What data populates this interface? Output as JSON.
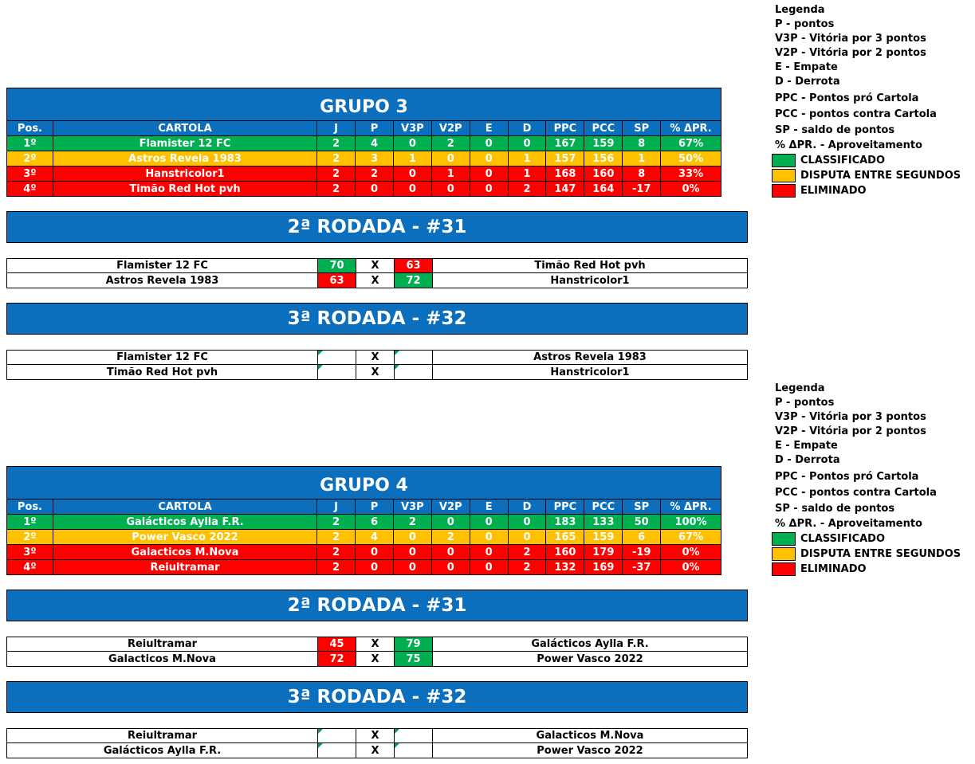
{
  "colors": {
    "header_blue": "#0b6fbd",
    "classificado": "#00b050",
    "disputa": "#ffc000",
    "eliminado": "#ff0000"
  },
  "legend": {
    "title": "Legenda",
    "lines": [
      "P - pontos",
      "V3P - Vitória por 3 pontos",
      "V2P - Vitória por 2 pontos",
      "E - Empate",
      "D - Derrota",
      "PPC - Pontos pró Cartola",
      "PCC - pontos contra Cartola",
      "SP - saldo de pontos",
      "% ΔPR. - Aproveitamento"
    ],
    "status": [
      "CLASSIFICADO",
      "DISPUTA ENTRE SEGUNDOS",
      "ELIMINADO"
    ]
  },
  "columns": [
    "Pos.",
    "CARTOLA",
    "J",
    "P",
    "V3P",
    "V2P",
    "E",
    "D",
    "PPC",
    "PCC",
    "SP",
    "% ΔPR."
  ],
  "groups": [
    {
      "title": "GRUPO 3",
      "rows": [
        [
          "1º",
          "Flamister 12 FC",
          "2",
          "4",
          "0",
          "2",
          "0",
          "0",
          "167",
          "159",
          "8",
          "67%"
        ],
        [
          "2º",
          "Astros Revela 1983",
          "2",
          "3",
          "1",
          "0",
          "0",
          "1",
          "157",
          "156",
          "1",
          "50%"
        ],
        [
          "3º",
          "Hanstricolor1",
          "2",
          "2",
          "0",
          "1",
          "0",
          "1",
          "168",
          "160",
          "8",
          "33%"
        ],
        [
          "4º",
          "Timão Red Hot pvh",
          "2",
          "0",
          "0",
          "0",
          "0",
          "2",
          "147",
          "164",
          "-17",
          "0%"
        ]
      ],
      "round2": {
        "title": "2ª RODADA - #31",
        "matches": [
          {
            "home": "Flamister 12 FC",
            "home_score": "70",
            "x": "X",
            "away_score": "63",
            "away": "Timão Red Hot pvh"
          },
          {
            "home": "Astros Revela 1983",
            "home_score": "63",
            "x": "X",
            "away_score": "72",
            "away": "Hanstricolor1"
          }
        ]
      },
      "round3": {
        "title": "3ª RODADA - #32",
        "matches": [
          {
            "home": "Flamister 12 FC",
            "home_score": "",
            "x": "X",
            "away_score": "",
            "away": "Astros Revela 1983"
          },
          {
            "home": "Timão Red Hot pvh",
            "home_score": "",
            "x": "X",
            "away_score": "",
            "away": "Hanstricolor1"
          }
        ]
      }
    },
    {
      "title": "GRUPO 4",
      "rows": [
        [
          "1º",
          "Galácticos Aylla F.R.",
          "2",
          "6",
          "2",
          "0",
          "0",
          "0",
          "183",
          "133",
          "50",
          "100%"
        ],
        [
          "2º",
          "Power Vasco 2022",
          "2",
          "4",
          "0",
          "2",
          "0",
          "0",
          "165",
          "159",
          "6",
          "67%"
        ],
        [
          "3º",
          "Galacticos M.Nova",
          "2",
          "0",
          "0",
          "0",
          "0",
          "2",
          "160",
          "179",
          "-19",
          "0%"
        ],
        [
          "4º",
          "Reiultramar",
          "2",
          "0",
          "0",
          "0",
          "0",
          "2",
          "132",
          "169",
          "-37",
          "0%"
        ]
      ],
      "round2": {
        "title": "2ª RODADA - #31",
        "matches": [
          {
            "home": "Reiultramar",
            "home_score": "45",
            "x": "X",
            "away_score": "79",
            "away": "Galácticos Aylla F.R."
          },
          {
            "home": "Galacticos M.Nova",
            "home_score": "72",
            "x": "X",
            "away_score": "75",
            "away": "Power Vasco 2022"
          }
        ]
      },
      "round3": {
        "title": "3ª RODADA - #32",
        "matches": [
          {
            "home": "Reiultramar",
            "home_score": "",
            "x": "X",
            "away_score": "",
            "away": "Galacticos M.Nova"
          },
          {
            "home": "Galácticos Aylla F.R.",
            "home_score": "",
            "x": "X",
            "away_score": "",
            "away": "Power Vasco 2022"
          }
        ]
      }
    }
  ]
}
